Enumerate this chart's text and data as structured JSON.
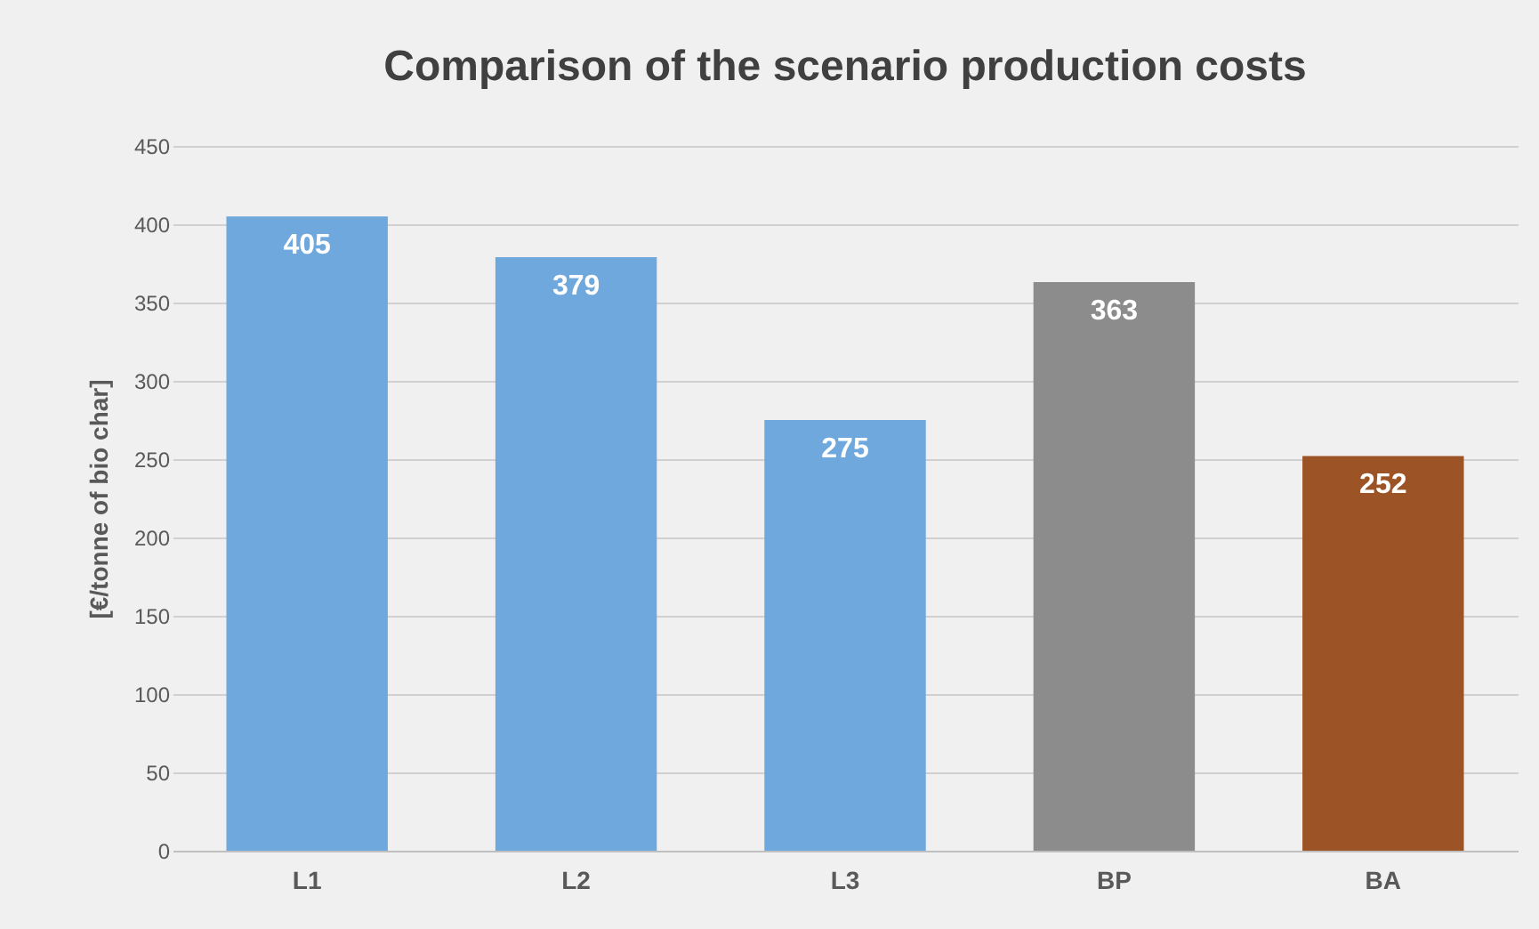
{
  "chart_data": {
    "type": "bar",
    "title": "Comparison of the scenario production costs",
    "ylabel": "[€/tonne of bio char]",
    "categories": [
      "L1",
      "L2",
      "L3",
      "BP",
      "BA"
    ],
    "values": [
      405,
      379,
      275,
      363,
      252
    ],
    "colors": [
      "#6fa8dc",
      "#6fa8dc",
      "#6fa8dc",
      "#8c8c8c",
      "#9c5426"
    ],
    "ylim": [
      0,
      450
    ],
    "yticks": [
      0,
      50,
      100,
      150,
      200,
      250,
      300,
      350,
      400,
      450
    ],
    "grid": "y",
    "data_labels": true
  }
}
